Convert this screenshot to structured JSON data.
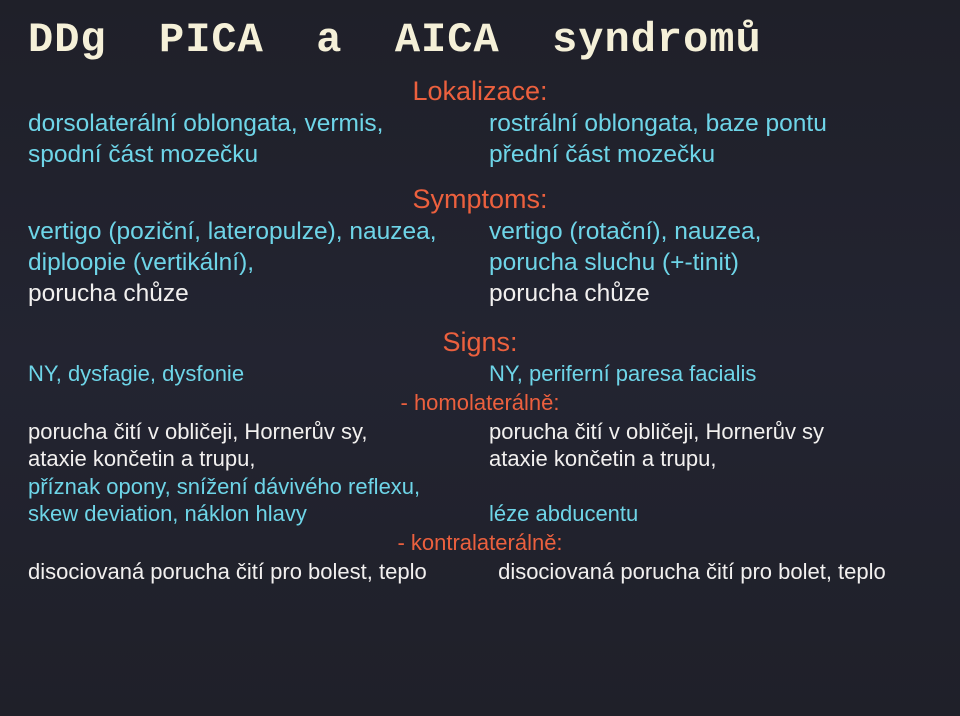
{
  "title": "DDg  PICA  a  AICA  syndromů",
  "sections": {
    "lokalizace": {
      "header": "Lokalizace:",
      "left": [
        "dorsolaterální oblongata, vermis,",
        "spodní část mozečku"
      ],
      "right": [
        "rostrální oblongata, baze pontu",
        "přední část mozečku"
      ]
    },
    "symptoms": {
      "header": "Symptoms:",
      "left": [
        "vertigo (poziční, lateropulze), nauzea,",
        "diploopie (vertikální),",
        "porucha chůze"
      ],
      "right": [
        "vertigo (rotační), nauzea,",
        "porucha sluchu (+-tinit)",
        "porucha chůze"
      ]
    },
    "signs": {
      "header": "Signs:",
      "row1": {
        "left": "NY, dysfagie, dysfonie",
        "right": "NY, periferní paresa facialis"
      },
      "homo": "- homolaterálně:",
      "homo_rows": [
        {
          "left": "porucha čití v obličeji, Hornerův sy,",
          "right": "porucha čití v obličeji, Hornerův sy"
        },
        {
          "left": "ataxie končetin a trupu,",
          "right": "ataxie končetin a trupu,"
        }
      ],
      "cyan_left1": "příznak opony, snížení dávivého reflexu,",
      "row_skew": {
        "left": "skew deviation, náklon hlavy",
        "right": "léze abducentu"
      },
      "kontra": "- kontralaterálně:",
      "kontra_row": {
        "left": "disociovaná porucha čití pro bolest, teplo",
        "right": "disociovaná porucha čití pro bolet, teplo"
      }
    }
  },
  "colors": {
    "title": "#f5f0d8",
    "header": "#ec603e",
    "cyan": "#6ed5e8",
    "white": "#f2f0ef",
    "bg_top": "#1f2029",
    "bg_mid": "#232431"
  }
}
